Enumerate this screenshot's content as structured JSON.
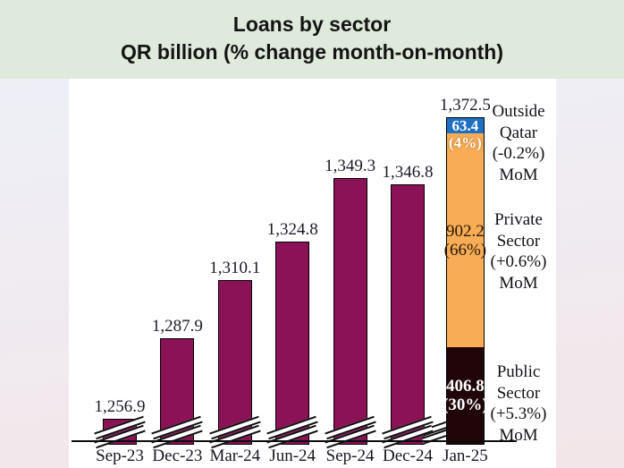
{
  "header": {
    "title_line1": "Loans by sector",
    "title_line2": "QR billion (% change month-on-month)"
  },
  "chart_data": {
    "type": "bar",
    "title": "Loans by sector",
    "subtitle": "QR billion (% change month-on-month)",
    "unit": "QR billion",
    "axis_break": true,
    "ylim": [
      1247,
      1380
    ],
    "categories": [
      "Sep-23",
      "Dec-23",
      "Mar-24",
      "Jun-24",
      "Sep-24",
      "Dec-24",
      "Jan-25"
    ],
    "totals": [
      1256.9,
      1287.9,
      1310.1,
      1324.8,
      1349.3,
      1346.8,
      1372.5
    ],
    "total_labels": [
      "1,256.9",
      "1,287.9",
      "1,310.1",
      "1,324.8",
      "1,349.3",
      "1,346.8",
      "1,372.5"
    ],
    "jan25_stack": {
      "category": "Jan-25",
      "total": 1372.5,
      "total_label": "1,372.5",
      "segments_bottom_up": [
        {
          "name": "Public Sector",
          "value": 406.8,
          "share": "30%",
          "label_value": "406.8",
          "label_share": "(30%)",
          "color": "#200608",
          "text_color": "#ffffff",
          "bold": true
        },
        {
          "name": "Private Sector",
          "value": 902.2,
          "share": "66%",
          "label_value": "902.2",
          "label_share": "(66%)",
          "color": "#f8ac55",
          "text_color": "#26180a",
          "bold": false
        },
        {
          "name": "Outside Qatar",
          "value": 63.4,
          "share": "4%",
          "label_value": "63.4",
          "label_share": "(4%)",
          "color": "#1f70c2",
          "text_color": "#ffffff",
          "bold": true
        }
      ]
    },
    "annotations": [
      {
        "l1": "Outside",
        "l2": "Qatar",
        "l3": "(-0.2%)",
        "l4": "MoM"
      },
      {
        "l1": "Private",
        "l2": "Sector",
        "l3": "(+0.6%)",
        "l4": "MoM"
      },
      {
        "l1": "Public",
        "l2": "Sector",
        "l3": "(+5.3%)",
        "l4": "MoM"
      }
    ],
    "legend_position": "right",
    "grid": false
  },
  "colors": {
    "bar": "#8c1257",
    "public_sector": "#200608",
    "private_sector": "#f8ac55",
    "outside_qatar": "#1f70c2",
    "header_bg": "#dfe9dc",
    "panel_bg": "#ffffff",
    "text": "#16161f"
  }
}
